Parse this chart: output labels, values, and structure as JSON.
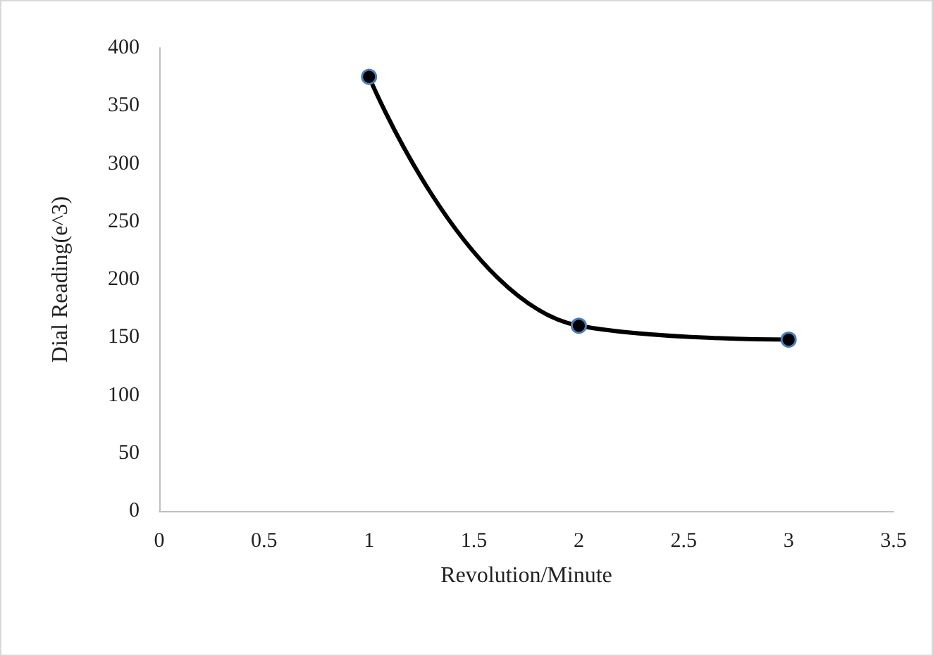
{
  "chart_data": {
    "type": "line",
    "xlabel": "Revolution/Minute",
    "ylabel": "Dial Reading(e^3)",
    "series": [
      {
        "color": "#000000",
        "x": [
          1,
          2,
          3
        ],
        "values": [
          375,
          160,
          148
        ]
      }
    ],
    "xlim": [
      0,
      3.5
    ],
    "xticks": [
      0,
      0.5,
      1,
      1.5,
      2,
      2.5,
      3,
      3.5
    ],
    "ylim": [
      0,
      400
    ],
    "yticks": [
      0,
      50,
      100,
      150,
      200,
      250,
      300,
      350,
      400
    ],
    "grid": false,
    "marker": "circle",
    "line_style": "solid"
  }
}
